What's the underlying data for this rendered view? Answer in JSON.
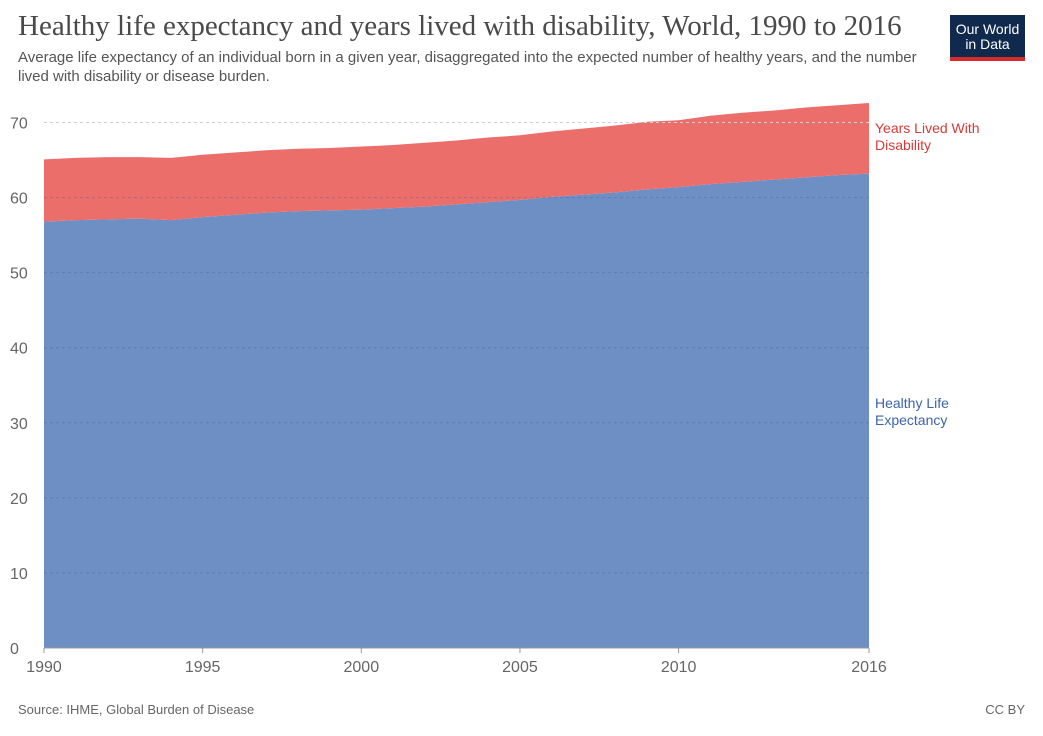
{
  "header": {
    "title": "Healthy life expectancy and years lived with disability, World, 1990 to 2016",
    "subtitle": "Average life expectancy of an individual born in a given year, disaggregated into the expected number of healthy years, and the number lived with disability or disease burden."
  },
  "logo": {
    "line1": "Our World",
    "line2": "in Data"
  },
  "footer": {
    "source": "Source: IHME, Global Burden of Disease",
    "license": "CC BY"
  },
  "colors": {
    "healthy": "#6e8fc4",
    "disability": "#ec6e6b",
    "healthy_label": "#3c64ad",
    "disability_label": "#d63a38"
  },
  "chart_data": {
    "type": "area",
    "stacked": true,
    "x": [
      1990,
      1991,
      1992,
      1993,
      1994,
      1995,
      1996,
      1997,
      1998,
      1999,
      2000,
      2001,
      2002,
      2003,
      2004,
      2005,
      2006,
      2007,
      2008,
      2009,
      2010,
      2011,
      2012,
      2013,
      2014,
      2015,
      2016
    ],
    "series": [
      {
        "name": "Healthy Life Expectancy",
        "label_lines": [
          "Healthy Life",
          "Expectancy"
        ],
        "values": [
          56.8,
          57.0,
          57.1,
          57.2,
          57.0,
          57.4,
          57.7,
          58.0,
          58.2,
          58.3,
          58.4,
          58.6,
          58.8,
          59.1,
          59.4,
          59.7,
          60.1,
          60.4,
          60.7,
          61.1,
          61.4,
          61.8,
          62.1,
          62.4,
          62.7,
          63.0,
          63.2
        ]
      },
      {
        "name": "Years Lived With Disability",
        "label_lines": [
          "Years Lived With",
          "Disability"
        ],
        "values": [
          8.3,
          8.3,
          8.3,
          8.2,
          8.3,
          8.3,
          8.3,
          8.3,
          8.3,
          8.3,
          8.4,
          8.4,
          8.5,
          8.5,
          8.6,
          8.6,
          8.7,
          8.8,
          8.9,
          9.0,
          8.9,
          9.1,
          9.2,
          9.2,
          9.3,
          9.3,
          9.4
        ]
      }
    ],
    "x_ticks": [
      "1990",
      "1995",
      "2000",
      "2005",
      "2010",
      "2016"
    ],
    "y_ticks": [
      "0",
      "10",
      "20",
      "30",
      "40",
      "50",
      "60",
      "70"
    ],
    "xlim": [
      1990,
      2016
    ],
    "ylim": [
      0,
      70
    ],
    "grid": "horizontal-dashed"
  }
}
